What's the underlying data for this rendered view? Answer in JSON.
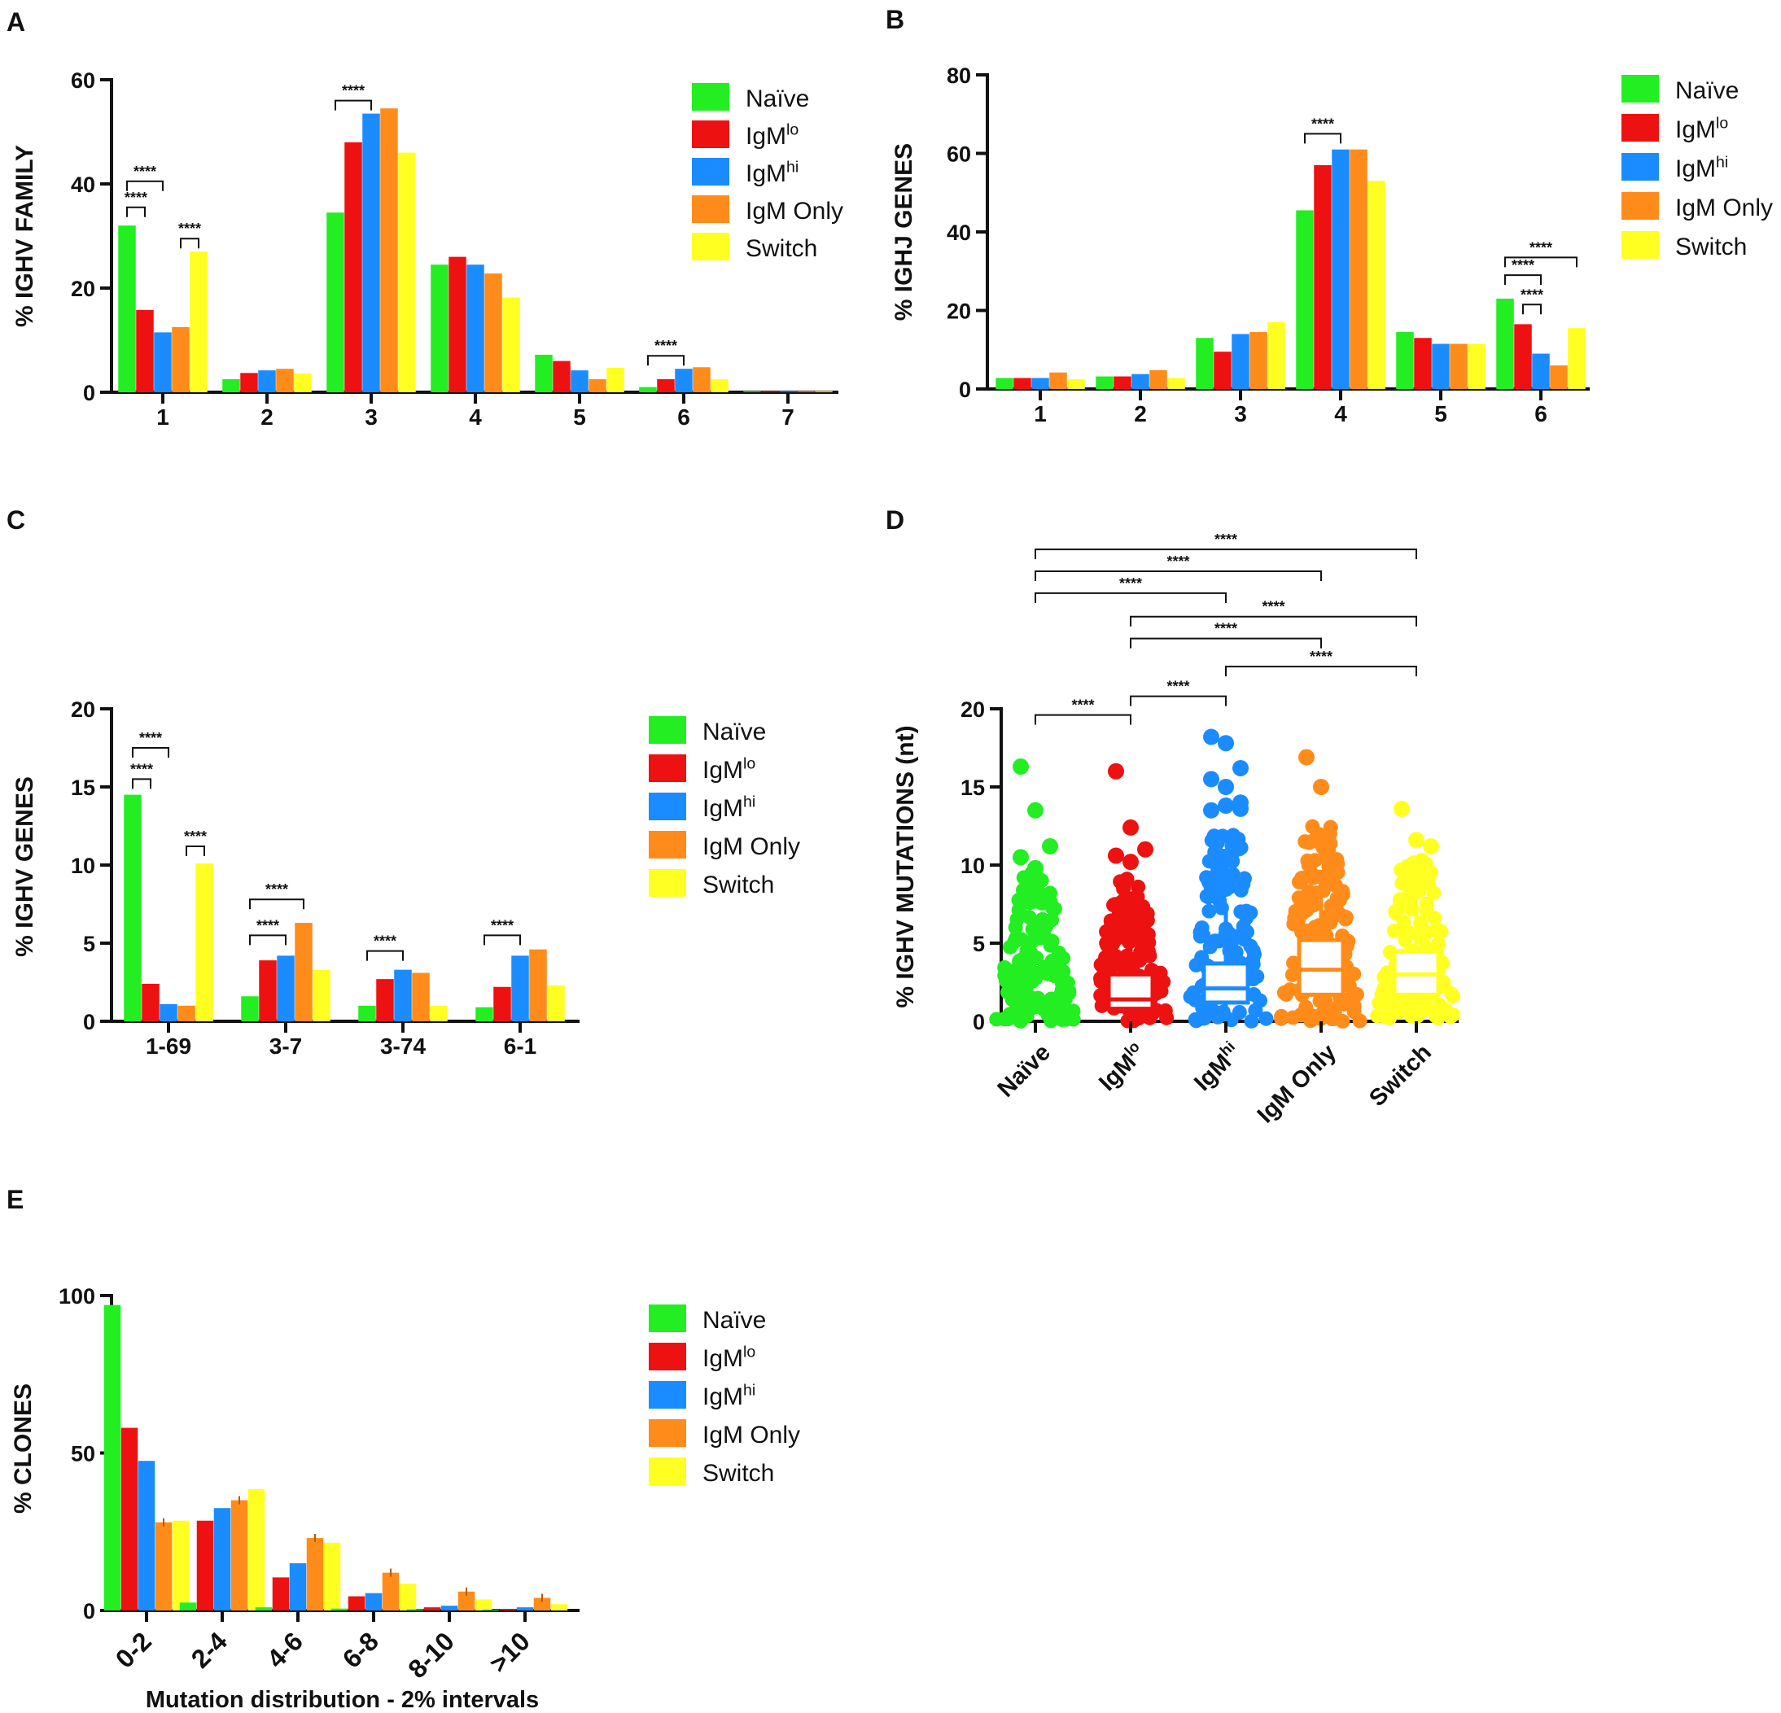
{
  "colors": {
    "naive": "#22ee22",
    "igmlo": "#ee1111",
    "igmhi": "#1a8cff",
    "igmonly": "#ff8c1a",
    "switch": "#ffff22",
    "axis": "#111111"
  },
  "legend": [
    {
      "key": "naive",
      "base": "Naïve",
      "sup": ""
    },
    {
      "key": "igmlo",
      "base": "IgM",
      "sup": "lo"
    },
    {
      "key": "igmhi",
      "base": "IgM",
      "sup": "hi"
    },
    {
      "key": "igmonly",
      "base": "IgM Only",
      "sup": ""
    },
    {
      "key": "switch",
      "base": "Switch",
      "sup": ""
    }
  ],
  "sig_label": "****",
  "chart_data": [
    {
      "id": "A",
      "panel_label": "A",
      "type": "bar",
      "ylabel": "% IGHV FAMILY",
      "xlabel": "",
      "ylim": [
        0,
        60
      ],
      "yticks": [
        "0",
        "20",
        "40",
        "60"
      ],
      "categories": [
        "1",
        "2",
        "3",
        "4",
        "5",
        "6",
        "7"
      ],
      "series": [
        {
          "name": "Naïve",
          "key": "naive",
          "values": [
            32,
            2.5,
            34.5,
            24.5,
            7.2,
            1,
            0.2
          ]
        },
        {
          "name": "IgMlo",
          "key": "igmlo",
          "values": [
            15.8,
            3.7,
            48,
            26,
            6,
            2.5,
            0.2
          ]
        },
        {
          "name": "IgMhi",
          "key": "igmhi",
          "values": [
            11.5,
            4.2,
            53.5,
            24.5,
            4.2,
            4.5,
            0.2
          ]
        },
        {
          "name": "IgM Only",
          "key": "igmonly",
          "values": [
            12.5,
            4.5,
            54.5,
            22.8,
            2.5,
            4.8,
            0.2
          ]
        },
        {
          "name": "Switch",
          "key": "switch",
          "values": [
            27,
            3.6,
            46,
            18.2,
            4.7,
            2.5,
            0.2
          ]
        }
      ],
      "sig": [
        {
          "cat": 0,
          "a": 0,
          "b": 1,
          "y": 35.5
        },
        {
          "cat": 0,
          "a": 0,
          "b": 2,
          "y": 40.5
        },
        {
          "cat": 0,
          "a": 3,
          "b": 4,
          "y": 29.5
        },
        {
          "cat": 2,
          "a": 0,
          "b": 2,
          "y": 56
        },
        {
          "cat": 5,
          "a": 0,
          "b": 2,
          "y": 7
        }
      ]
    },
    {
      "id": "B",
      "panel_label": "B",
      "type": "bar",
      "ylabel": "% IGHJ GENES",
      "xlabel": "",
      "ylim": [
        0,
        80
      ],
      "yticks": [
        "0",
        "20",
        "40",
        "60",
        "80"
      ],
      "categories": [
        "1",
        "2",
        "3",
        "4",
        "5",
        "6"
      ],
      "series": [
        {
          "name": "Naïve",
          "key": "naive",
          "values": [
            2.8,
            3.2,
            13,
            45.5,
            14.5,
            23
          ]
        },
        {
          "name": "IgMlo",
          "key": "igmlo",
          "values": [
            2.8,
            3.2,
            9.5,
            57,
            13,
            16.5
          ]
        },
        {
          "name": "IgMhi",
          "key": "igmhi",
          "values": [
            2.8,
            3.8,
            14,
            61,
            11.5,
            9
          ]
        },
        {
          "name": "IgM Only",
          "key": "igmonly",
          "values": [
            4.2,
            4.8,
            14.5,
            61,
            11.5,
            6
          ]
        },
        {
          "name": "Switch",
          "key": "switch",
          "values": [
            2.5,
            2.8,
            17,
            53,
            11.5,
            15.5
          ]
        }
      ],
      "sig": [
        {
          "cat": 3,
          "a": 0,
          "b": 2,
          "y": 65
        },
        {
          "cat": 5,
          "a": 0,
          "b": 4,
          "y": 33.5
        },
        {
          "cat": 5,
          "a": 0,
          "b": 2,
          "y": 29
        },
        {
          "cat": 5,
          "a": 1,
          "b": 2,
          "y": 21.5
        }
      ]
    },
    {
      "id": "C",
      "panel_label": "C",
      "type": "bar",
      "ylabel": "% IGHV GENES",
      "xlabel": "",
      "ylim": [
        0,
        20
      ],
      "yticks": [
        "0",
        "5",
        "10",
        "15",
        "20"
      ],
      "categories": [
        "1-69",
        "3-7",
        "3-74",
        "6-1"
      ],
      "series": [
        {
          "name": "Naïve",
          "key": "naive",
          "values": [
            14.5,
            1.6,
            1,
            0.9
          ]
        },
        {
          "name": "IgMlo",
          "key": "igmlo",
          "values": [
            2.4,
            3.9,
            2.7,
            2.2
          ]
        },
        {
          "name": "IgMhi",
          "key": "igmhi",
          "values": [
            1.1,
            4.2,
            3.3,
            4.2
          ]
        },
        {
          "name": "IgM Only",
          "key": "igmonly",
          "values": [
            1,
            6.3,
            3.1,
            4.6
          ]
        },
        {
          "name": "Switch",
          "key": "switch",
          "values": [
            10.1,
            3.3,
            1,
            2.3
          ]
        }
      ],
      "sig": [
        {
          "cat": 0,
          "a": 0,
          "b": 2,
          "y": 17.5
        },
        {
          "cat": 0,
          "a": 0,
          "b": 1,
          "y": 15.5
        },
        {
          "cat": 0,
          "a": 3,
          "b": 4,
          "y": 11.2
        },
        {
          "cat": 1,
          "a": 0,
          "b": 3,
          "y": 7.8
        },
        {
          "cat": 1,
          "a": 0,
          "b": 2,
          "y": 5.5
        },
        {
          "cat": 2,
          "a": 0,
          "b": 2,
          "y": 4.5
        },
        {
          "cat": 3,
          "a": 0,
          "b": 2,
          "y": 5.5
        }
      ]
    },
    {
      "id": "D",
      "panel_label": "D",
      "type": "boxplot",
      "ylabel": "% IGHV MUTATIONS (nt)",
      "xlabel": "",
      "ylim": [
        0,
        20
      ],
      "yticks": [
        "0",
        "5",
        "10",
        "15",
        "20"
      ],
      "categories": [
        "Naïve",
        "IgMlo",
        "IgMhi",
        "IgM Only",
        "Switch"
      ],
      "cat_sups": [
        "",
        "lo",
        "hi",
        "",
        ""
      ],
      "cat_bases": [
        "Naïve",
        "IgM",
        "IgM",
        "IgM Only",
        "Switch"
      ],
      "boxes": [
        {
          "key": "naive",
          "q1": 0,
          "median": 0,
          "q3": 0,
          "min": 0,
          "max": 0,
          "dense_top": 9.5,
          "outliers": [
            16.3,
            13.5,
            11.2,
            10.5,
            9.8
          ]
        },
        {
          "key": "igmlo",
          "q1": 0.8,
          "median": 1.4,
          "q3": 3,
          "min": 0,
          "max": 6.5,
          "dense_top": 9.5,
          "outliers": [
            16,
            12.4,
            11,
            10.6,
            10.2
          ]
        },
        {
          "key": "igmhi",
          "q1": 1.2,
          "median": 2.1,
          "q3": 3.7,
          "min": 0,
          "max": 7.4,
          "dense_top": 12,
          "outliers": [
            18.2,
            17.8,
            16.2,
            15.5,
            15,
            14,
            13.5,
            13.8,
            13.6
          ]
        },
        {
          "key": "igmonly",
          "q1": 1.7,
          "median": 3.3,
          "q3": 5.2,
          "min": 0,
          "max": 8,
          "dense_top": 13,
          "outliers": [
            16.9,
            15
          ]
        },
        {
          "key": "switch",
          "q1": 1.7,
          "median": 3,
          "q3": 4.5,
          "min": 0,
          "max": 7,
          "dense_top": 10.5,
          "outliers": [
            13.6,
            11.6,
            11.2
          ]
        }
      ],
      "sig": [
        {
          "a": 0,
          "b": 4,
          "y": 30.2
        },
        {
          "a": 0,
          "b": 3,
          "y": 28.8
        },
        {
          "a": 0,
          "b": 2,
          "y": 27.4
        },
        {
          "a": 1,
          "b": 4,
          "y": 25.9
        },
        {
          "a": 1,
          "b": 3,
          "y": 24.5
        },
        {
          "a": 2,
          "b": 4,
          "y": 22.7
        },
        {
          "a": 1,
          "b": 2,
          "y": 20.8
        },
        {
          "a": 0,
          "b": 1,
          "y": 19.6
        }
      ]
    },
    {
      "id": "E",
      "panel_label": "E",
      "type": "bar",
      "ylabel": "% CLONES",
      "xlabel": "Mutation distribution - 2% intervals",
      "ylim": [
        0,
        100
      ],
      "yticks": [
        "0",
        "50",
        "100"
      ],
      "categories": [
        "0-2",
        "2-4",
        "4-6",
        "6-8",
        "8-10",
        ">10"
      ],
      "series": [
        {
          "name": "Naïve",
          "key": "naive",
          "values": [
            97,
            2.5,
            1,
            0.6,
            0.4,
            0.3
          ]
        },
        {
          "name": "IgMlo",
          "key": "igmlo",
          "values": [
            58,
            28.5,
            10.5,
            4.5,
            1,
            0.5
          ]
        },
        {
          "name": "IgMhi",
          "key": "igmhi",
          "values": [
            47.5,
            32.5,
            15,
            5.5,
            1.5,
            1
          ]
        },
        {
          "name": "IgM Only",
          "key": "igmonly",
          "values": [
            28,
            35,
            23,
            12,
            6,
            4
          ]
        },
        {
          "name": "Switch",
          "key": "switch",
          "values": [
            28.5,
            38.5,
            21.5,
            8.5,
            3.5,
            2
          ]
        }
      ],
      "error_series": [
        3
      ],
      "sig": []
    }
  ]
}
